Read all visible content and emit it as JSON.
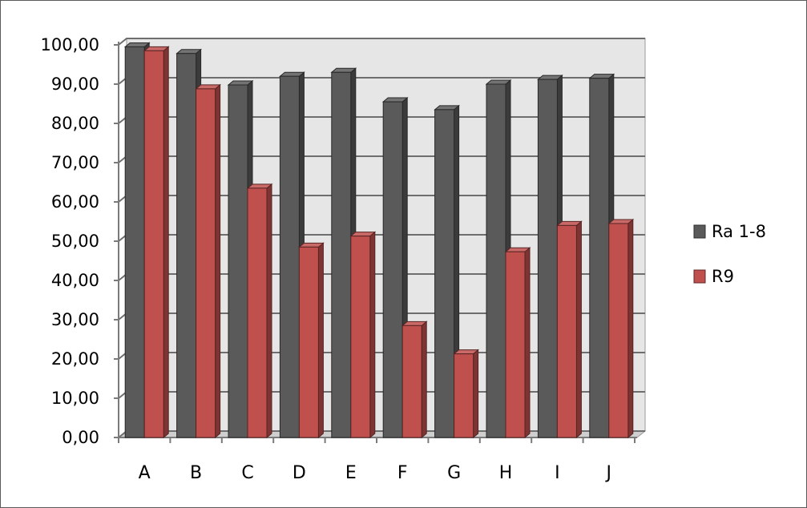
{
  "chart_data": {
    "type": "bar",
    "style": "3d-clustered-column",
    "categories": [
      "A",
      "B",
      "C",
      "D",
      "E",
      "F",
      "G",
      "H",
      "I",
      "J"
    ],
    "series": [
      {
        "name": "Ra 1-8",
        "color": "#5a5a5a",
        "values": [
          99.5,
          97.8,
          89.8,
          92.0,
          93.0,
          85.5,
          83.5,
          90.0,
          91.2,
          91.5
        ]
      },
      {
        "name": "R9",
        "color": "#c0504d",
        "values": [
          98.5,
          88.8,
          63.5,
          48.5,
          51.3,
          28.5,
          21.3,
          47.3,
          54.0,
          54.5
        ]
      }
    ],
    "y_ticks": [
      "0,00",
      "10,00",
      "20,00",
      "30,00",
      "40,00",
      "50,00",
      "60,00",
      "70,00",
      "80,00",
      "90,00",
      "100,00"
    ],
    "ylim": [
      0,
      100
    ],
    "grid": true,
    "legend_position": "right"
  }
}
